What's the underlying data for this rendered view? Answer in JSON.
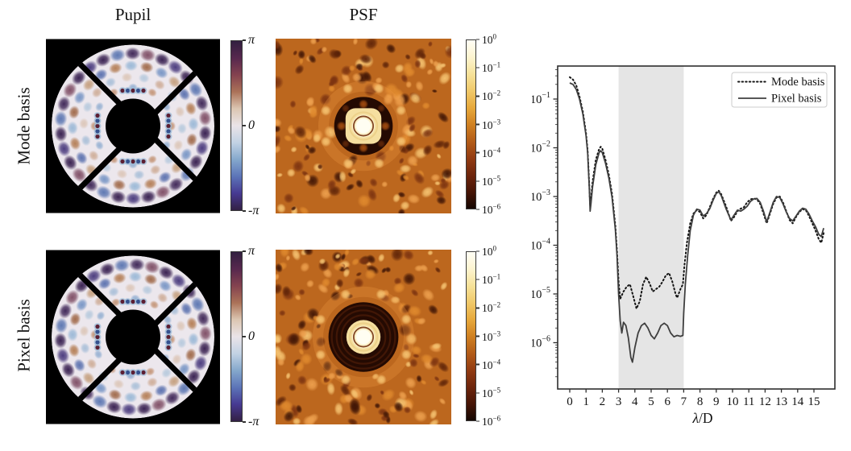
{
  "figure": {
    "column_titles": {
      "pupil": "Pupil",
      "psf": "PSF"
    },
    "row_labels": [
      "Mode basis",
      "Pixel basis"
    ],
    "phase_colorbar": {
      "tick_labels": [
        "π",
        "0",
        "-π"
      ],
      "gradient_stops": [
        "#322040",
        "#57284e",
        "#84424f",
        "#ab7258",
        "#dcc6b2",
        "#eae4e8",
        "#c2d2e4",
        "#85a8cc",
        "#5c74b8",
        "#473a92",
        "#332044"
      ]
    },
    "intensity_colorbar": {
      "base_label": "10",
      "tick_exponents": [
        0,
        -1,
        -2,
        -3,
        -4,
        -5,
        -6
      ],
      "gradient_stops": [
        "#fffef5",
        "#fdf4d0",
        "#f6e29a",
        "#f0c96a",
        "#e7a93c",
        "#d08122",
        "#b35c18",
        "#933c12",
        "#6e250c",
        "#471506",
        "#150702"
      ]
    }
  },
  "pupil_panels": [
    {
      "aperture_fill": "#ece7ed",
      "obscuration_radius": 34,
      "spider_width": 7,
      "cluster_r": 44,
      "cluster_colors": [
        "#5c1f33",
        "#35518f",
        "#5c1f33",
        "#35518f",
        "#5c1f33"
      ],
      "rings": [
        {
          "r": 90,
          "n": 30,
          "s": 10,
          "ry": 0.8,
          "phase": 0.1,
          "o": 1.0,
          "colors": [
            "#32194b",
            "#45357a",
            "#32194b",
            "#5873b0",
            "#3a2153",
            "#7c4a62"
          ]
        },
        {
          "r": 75,
          "n": 24,
          "s": 8.5,
          "ry": 0.8,
          "phase": 0.23,
          "o": 0.95,
          "colors": [
            "#9a5f3c",
            "#6f8fc2",
            "#c29a76",
            "#5068aa",
            "#b0764a",
            "#95b5d5"
          ]
        },
        {
          "r": 61,
          "n": 18,
          "s": 7,
          "ry": 0.85,
          "phase": 0.4,
          "o": 0.85,
          "colors": [
            "#d9c0ae",
            "#adc4da",
            "#c9a288",
            "#9db8d4"
          ]
        },
        {
          "r": 48,
          "n": 12,
          "s": 6,
          "ry": 0.85,
          "phase": 0.0,
          "o": 0.8,
          "colors": [
            "#b97f58",
            "#7fa2cb"
          ]
        }
      ]
    },
    {
      "aperture_fill": "#ece7ed",
      "obscuration_radius": 34,
      "spider_width": 7,
      "cluster_r": 44,
      "cluster_colors": [
        "#5c1f33",
        "#35518f",
        "#5c1f33",
        "#35518f",
        "#5c1f33"
      ],
      "rings": [
        {
          "r": 90,
          "n": 30,
          "s": 10,
          "ry": 0.8,
          "phase": 0.16,
          "o": 1.0,
          "colors": [
            "#32194b",
            "#45357a",
            "#32194b",
            "#5873b0",
            "#3a2153",
            "#7c4a62"
          ]
        },
        {
          "r": 75,
          "n": 24,
          "s": 8.5,
          "ry": 0.8,
          "phase": 0.3,
          "o": 0.95,
          "colors": [
            "#9a5f3c",
            "#6f8fc2",
            "#c29a76",
            "#5068aa",
            "#b0764a",
            "#95b5d5"
          ]
        },
        {
          "r": 61,
          "n": 18,
          "s": 7,
          "ry": 0.85,
          "phase": 0.47,
          "o": 0.85,
          "colors": [
            "#d9c0ae",
            "#adc4da",
            "#c9a288",
            "#9db8d4"
          ]
        },
        {
          "r": 48,
          "n": 12,
          "s": 6,
          "ry": 0.85,
          "phase": 0.06,
          "o": 0.8,
          "colors": [
            "#b97f58",
            "#7fa2cb"
          ]
        }
      ]
    }
  ],
  "psf_panels": [
    {
      "seed": 7,
      "base": "#bc671e",
      "dark_outer": 36,
      "halo": "square",
      "rings": [],
      "bumps": true,
      "speckle_bright": [
        "#eda04e",
        "#f6c472",
        "#e08a2e"
      ],
      "speckle_dark": [
        "#5f2408",
        "#401505",
        "#7c3310"
      ]
    },
    {
      "seed": 13,
      "base": "#bc671e",
      "dark_outer": 43,
      "halo": "circle",
      "rings": [
        27,
        33,
        39
      ],
      "bumps": false,
      "speckle_bright": [
        "#eda04e",
        "#f6c472",
        "#e08a2e"
      ],
      "speckle_dark": [
        "#5f2408",
        "#401505",
        "#7c3310"
      ]
    }
  ],
  "chart_data": {
    "type": "line",
    "title": "",
    "xlabel": "λ/D",
    "ylabel": "",
    "x_ticks": [
      0,
      1,
      2,
      3,
      4,
      5,
      6,
      7,
      8,
      9,
      10,
      11,
      12,
      13,
      14,
      15
    ],
    "y_tick_exponents": [
      -1,
      -2,
      -3,
      -4,
      -5,
      -6
    ],
    "xlim": [
      -0.75,
      16.3
    ],
    "ylim": [
      1.1e-07,
      0.48
    ],
    "grid": false,
    "shaded_region": {
      "x0": 3,
      "x1": 7,
      "color": "#e5e5e5"
    },
    "legend": {
      "position": "upper right",
      "entries": [
        "Mode basis",
        "Pixel basis"
      ]
    },
    "series": [
      {
        "name": "Mode basis",
        "style": "dotted",
        "color": "#141414",
        "x": [
          0,
          0.2,
          0.4,
          0.6,
          0.8,
          1.0,
          1.1,
          1.2,
          1.25,
          1.3,
          1.4,
          1.6,
          1.8,
          1.9,
          2.0,
          2.2,
          2.4,
          2.6,
          2.8,
          2.9,
          3.0,
          3.1,
          3.3,
          3.5,
          3.7,
          3.9,
          4.1,
          4.3,
          4.5,
          4.7,
          4.9,
          5.1,
          5.3,
          5.5,
          5.7,
          5.9,
          6.1,
          6.3,
          6.5,
          6.6,
          6.8,
          6.95,
          7.05,
          7.2,
          7.4,
          7.6,
          7.8,
          8.0,
          8.2,
          8.4,
          8.6,
          8.8,
          9.0,
          9.15,
          9.3,
          9.6,
          9.9,
          10.1,
          10.3,
          10.5,
          10.7,
          10.9,
          11.1,
          11.3,
          11.5,
          11.7,
          11.9,
          12.1,
          12.3,
          12.5,
          12.7,
          12.9,
          13.1,
          13.3,
          13.5,
          13.7,
          13.9,
          14.1,
          14.3,
          14.5,
          14.7,
          14.9,
          15.1,
          15.3,
          15.45,
          15.6
        ],
        "y": [
          0.282,
          0.251,
          0.191,
          0.112,
          0.0562,
          0.02,
          0.00891,
          0.00178,
          0.000631,
          0.000891,
          0.002,
          0.00562,
          0.00933,
          0.0105,
          0.00955,
          0.00562,
          0.00282,
          0.00112,
          0.000251,
          7.94e-05,
          1.78e-05,
          7.94e-06,
          1.12e-05,
          1.41e-05,
          1.58e-05,
          8.91e-06,
          5.01e-06,
          7.08e-06,
          1.58e-05,
          2.24e-05,
          1.66e-05,
          1.12e-05,
          1.26e-05,
          1.41e-05,
          1.78e-05,
          2.4e-05,
          2.69e-05,
          1.78e-05,
          1e-05,
          8.32e-06,
          1.26e-05,
          1.58e-05,
          3.98e-05,
          0.000112,
          0.000282,
          0.000447,
          0.000525,
          0.000479,
          0.000355,
          0.000417,
          0.000603,
          0.000891,
          0.0012,
          0.00132,
          0.00112,
          0.000631,
          0.000316,
          0.00038,
          0.000501,
          0.000562,
          0.000603,
          0.000759,
          0.000871,
          0.000912,
          0.000871,
          0.000708,
          0.000447,
          0.000282,
          0.000447,
          0.000708,
          0.000955,
          0.001,
          0.000759,
          0.000501,
          0.000331,
          0.000282,
          0.00038,
          0.000479,
          0.00055,
          0.000525,
          0.000398,
          0.000282,
          0.0002,
          0.000132,
          0.000112,
          0.000178
        ]
      },
      {
        "name": "Pixel basis",
        "style": "solid",
        "color": "#3f3f3f",
        "x": [
          0,
          0.2,
          0.4,
          0.6,
          0.8,
          1.0,
          1.1,
          1.2,
          1.25,
          1.3,
          1.4,
          1.6,
          1.8,
          1.9,
          2.0,
          2.2,
          2.4,
          2.6,
          2.8,
          2.9,
          3.0,
          3.1,
          3.2,
          3.3,
          3.45,
          3.6,
          3.75,
          3.85,
          4.0,
          4.2,
          4.4,
          4.6,
          4.8,
          5.0,
          5.2,
          5.4,
          5.6,
          5.8,
          6.0,
          6.2,
          6.4,
          6.6,
          6.8,
          6.95,
          7.0,
          7.1,
          7.25,
          7.4,
          7.6,
          7.8,
          8.0,
          8.2,
          8.4,
          8.6,
          8.8,
          9.0,
          9.15,
          9.3,
          9.6,
          9.9,
          10.1,
          10.3,
          10.5,
          10.7,
          10.9,
          11.1,
          11.3,
          11.5,
          11.7,
          11.9,
          12.1,
          12.3,
          12.5,
          12.7,
          12.9,
          13.1,
          13.3,
          13.5,
          13.7,
          13.9,
          14.1,
          14.3,
          14.5,
          14.7,
          14.9,
          15.1,
          15.3,
          15.45,
          15.6
        ],
        "y": [
          0.214,
          0.2,
          0.158,
          0.1,
          0.0501,
          0.0178,
          0.00794,
          0.00158,
          0.000501,
          0.000708,
          0.00158,
          0.00447,
          0.00794,
          0.00871,
          0.00794,
          0.00479,
          0.0024,
          0.000955,
          0.000209,
          6.31e-05,
          1e-05,
          2.82e-06,
          1.58e-06,
          2.63e-06,
          2.24e-06,
          1.26e-06,
          5.01e-07,
          3.98e-07,
          7.94e-07,
          1.58e-06,
          2.24e-06,
          2.51e-06,
          2e-06,
          1.41e-06,
          1.2e-06,
          1.58e-06,
          2.24e-06,
          2.51e-06,
          2.24e-06,
          1.58e-06,
          1.32e-06,
          1.41e-06,
          1.35e-06,
          1.41e-06,
          3.98e-06,
          1.58e-05,
          6.31e-05,
          0.0002,
          0.000417,
          0.00055,
          0.000525,
          0.000398,
          0.000447,
          0.000562,
          0.000832,
          0.00115,
          0.00126,
          0.00105,
          0.000562,
          0.000331,
          0.000417,
          0.000525,
          0.000501,
          0.00055,
          0.000631,
          0.000794,
          0.000891,
          0.000912,
          0.000759,
          0.000501,
          0.000302,
          0.000479,
          0.000759,
          0.001,
          0.000955,
          0.000708,
          0.000479,
          0.000355,
          0.000316,
          0.000398,
          0.000501,
          0.000575,
          0.00055,
          0.000437,
          0.000316,
          0.00024,
          0.000166,
          0.000151,
          0.000224
        ]
      }
    ]
  }
}
